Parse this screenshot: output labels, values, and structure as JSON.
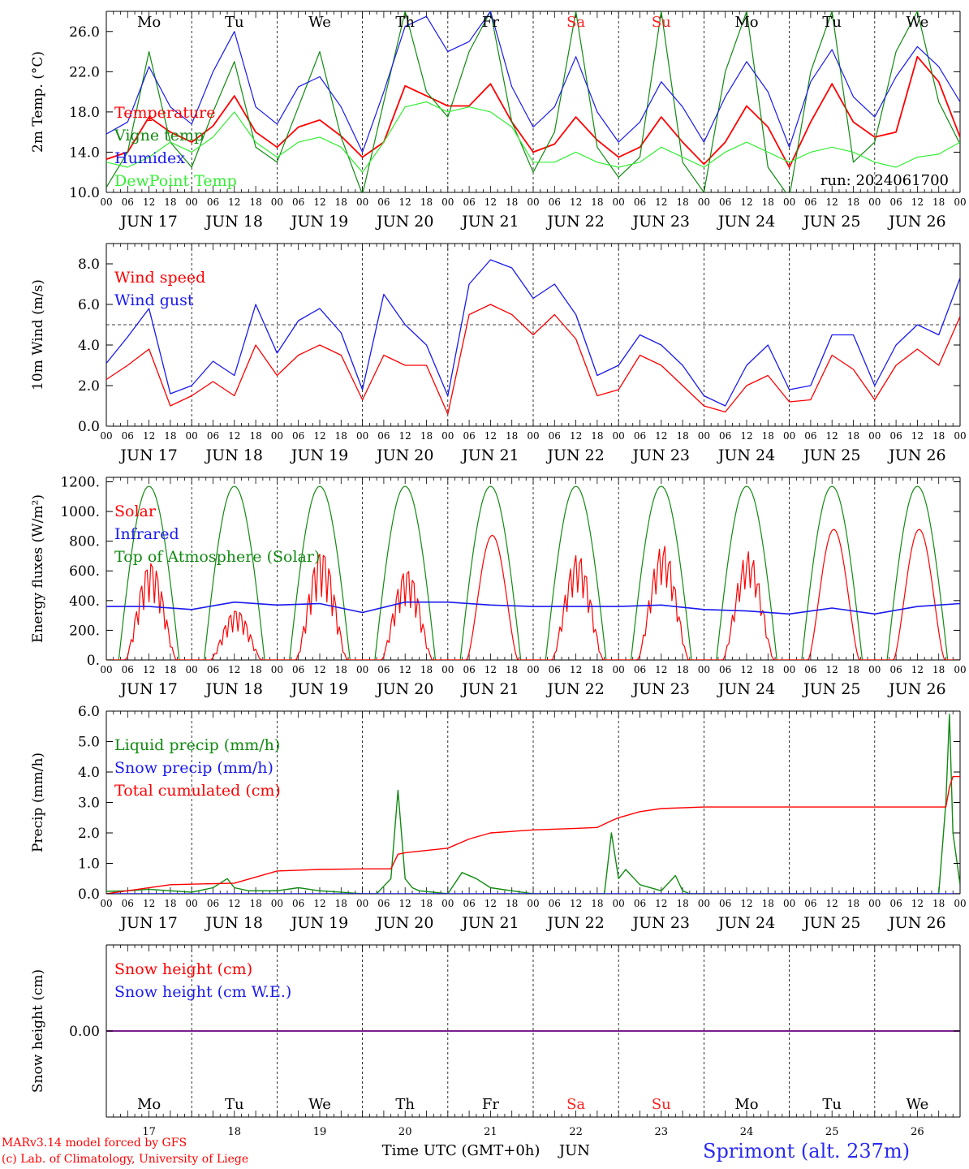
{
  "meta": {
    "footer_model": "MARv3.14 model forced by GFS",
    "footer_copy": "(c) Lab. of Climatology, University of Liege",
    "station": "Sprimont (alt. 237m)",
    "time_axis_label": "Time UTC (GMT+0h)",
    "month_label": "JUN"
  },
  "colors": {
    "red": "#ff0000",
    "green": "#118a11",
    "blue": "#1a1aee",
    "lightgreen": "#33ee33",
    "purple": "#7a1f8f",
    "weekend": "#ff2020"
  },
  "days": {
    "names": [
      "Mo",
      "Tu",
      "We",
      "Th",
      "Fr",
      "Sa",
      "Su",
      "Mo",
      "Tu",
      "We"
    ],
    "weekend": [
      false,
      false,
      false,
      false,
      false,
      true,
      true,
      false,
      false,
      false
    ],
    "dates": [
      "JUN 17",
      "JUN 18",
      "JUN 19",
      "JUN 20",
      "JUN 21",
      "JUN 22",
      "JUN 23",
      "JUN 24",
      "JUN 25",
      "JUN 26"
    ],
    "numbers": [
      "17",
      "18",
      "19",
      "20",
      "21",
      "22",
      "23",
      "24",
      "25",
      "26"
    ],
    "hour_ticks": [
      "00",
      "06",
      "12",
      "18"
    ],
    "last_tick": "00"
  },
  "chart_data": [
    {
      "id": "temperature",
      "type": "line",
      "ylabel": "2m Temp. (°C)",
      "ylim": [
        10,
        28
      ],
      "yticks": [
        "10.0",
        "14.0",
        "18.0",
        "22.0",
        "26.0"
      ],
      "ytick_values": [
        10,
        14,
        18,
        22,
        26
      ],
      "annotation": "run: 2024061700",
      "x_hours": [
        0,
        6,
        12,
        18,
        24,
        30,
        36,
        42,
        48,
        54,
        60,
        66,
        72,
        78,
        84,
        90,
        96,
        102,
        108,
        114,
        120,
        126,
        132,
        138,
        144,
        150,
        156,
        162,
        168,
        174,
        180,
        186,
        192,
        198,
        204,
        210,
        216,
        222,
        228,
        234,
        240
      ],
      "series": [
        {
          "name": "Temperature",
          "color": "red",
          "values": [
            13.3,
            14.0,
            17.5,
            16.0,
            15.0,
            16.6,
            19.6,
            16.0,
            14.5,
            16.5,
            17.2,
            15.6,
            13.5,
            15.0,
            20.6,
            19.6,
            18.6,
            18.6,
            20.8,
            17.0,
            14.0,
            14.8,
            17.5,
            15.2,
            13.5,
            14.5,
            17.5,
            15.0,
            12.8,
            15.0,
            18.6,
            16.5,
            12.5,
            17.0,
            20.8,
            17.0,
            15.5,
            16.0,
            23.5,
            21.0,
            15.5
          ]
        },
        {
          "name": "Vigne temp",
          "color": "green",
          "values": [
            10.5,
            14.0,
            24.0,
            15.0,
            12.5,
            18.0,
            23.0,
            14.5,
            13.0,
            18.5,
            24.0,
            15.5,
            9.8,
            19.0,
            28.0,
            20.0,
            17.5,
            24.0,
            28.0,
            17.0,
            12.0,
            16.0,
            28.0,
            14.5,
            11.5,
            13.5,
            28.0,
            13.0,
            10.0,
            22.0,
            28.0,
            12.5,
            9.5,
            22.0,
            28.0,
            13.0,
            15.0,
            24.0,
            28.0,
            19.0,
            14.8
          ]
        },
        {
          "name": "Humidex",
          "color": "blue",
          "values": [
            15.8,
            17.0,
            22.5,
            18.5,
            16.8,
            22.0,
            26.0,
            18.5,
            16.8,
            20.5,
            21.5,
            18.5,
            14.0,
            20.0,
            26.5,
            27.5,
            24.0,
            25.0,
            28.0,
            20.5,
            16.5,
            18.5,
            23.5,
            18.0,
            15.0,
            17.0,
            21.0,
            18.5,
            15.0,
            19.5,
            23.0,
            20.0,
            14.5,
            21.0,
            24.2,
            19.5,
            17.5,
            21.5,
            24.5,
            22.5,
            19.0
          ]
        },
        {
          "name": "DewPoint Temp",
          "color": "lightgreen",
          "values": [
            13.0,
            12.5,
            13.5,
            15.0,
            14.0,
            15.5,
            18.0,
            15.0,
            13.5,
            15.0,
            15.5,
            14.5,
            12.0,
            15.0,
            18.5,
            19.0,
            18.0,
            18.5,
            18.0,
            16.5,
            13.0,
            13.0,
            14.0,
            13.0,
            12.5,
            13.0,
            14.5,
            13.5,
            12.5,
            14.0,
            15.0,
            14.0,
            13.0,
            14.0,
            14.5,
            14.0,
            13.0,
            12.5,
            13.5,
            13.8,
            15.0
          ]
        }
      ],
      "legend": [
        "Temperature",
        "Vigne temp",
        "Humidex",
        "DewPoint Temp"
      ]
    },
    {
      "id": "wind",
      "type": "line",
      "ylabel": "10m Wind (m/s)",
      "ylim": [
        0,
        9
      ],
      "yticks": [
        "0.0",
        "2.0",
        "4.0",
        "6.0",
        "8.0"
      ],
      "ytick_values": [
        0,
        2,
        4,
        6,
        8
      ],
      "reference_line": 5,
      "x_hours": [
        0,
        6,
        12,
        18,
        24,
        30,
        36,
        42,
        48,
        54,
        60,
        66,
        72,
        78,
        84,
        90,
        96,
        102,
        108,
        114,
        120,
        126,
        132,
        138,
        144,
        150,
        156,
        162,
        168,
        174,
        180,
        186,
        192,
        198,
        204,
        210,
        216,
        222,
        228,
        234,
        240
      ],
      "series": [
        {
          "name": "Wind speed",
          "color": "red",
          "values": [
            2.3,
            3.0,
            3.8,
            1.0,
            1.5,
            2.2,
            1.5,
            4.0,
            2.5,
            3.5,
            4.0,
            3.5,
            1.3,
            3.5,
            3.0,
            3.0,
            0.6,
            5.5,
            6.0,
            5.5,
            4.5,
            5.5,
            4.3,
            1.5,
            1.8,
            3.5,
            3.0,
            2.0,
            1.0,
            0.7,
            2.0,
            2.5,
            1.2,
            1.3,
            3.5,
            2.8,
            1.3,
            3.0,
            3.8,
            3.0,
            5.4
          ]
        },
        {
          "name": "Wind gust",
          "color": "blue",
          "values": [
            3.1,
            4.4,
            5.8,
            1.6,
            2.0,
            3.2,
            2.5,
            6.0,
            3.6,
            5.2,
            5.8,
            4.6,
            1.8,
            6.5,
            5.0,
            4.0,
            1.5,
            7.0,
            8.2,
            7.8,
            6.3,
            7.0,
            5.5,
            2.5,
            3.0,
            4.5,
            4.0,
            3.0,
            1.5,
            1.0,
            3.0,
            4.0,
            1.8,
            2.0,
            4.5,
            4.5,
            2.0,
            4.0,
            5.0,
            4.5,
            7.3
          ]
        }
      ],
      "legend": [
        "Wind speed",
        "Wind gust"
      ]
    },
    {
      "id": "energy",
      "type": "line",
      "ylabel": "Energy fluxes (W/m²)",
      "ylim": [
        0,
        1230
      ],
      "yticks": [
        "0.",
        "200.",
        "400.",
        "600.",
        "800.",
        "1000.",
        "1200."
      ],
      "ytick_values": [
        0,
        200,
        400,
        600,
        800,
        1000,
        1200
      ],
      "solar_peaks": [
        680,
        350,
        760,
        630,
        840,
        730,
        790,
        740,
        880,
        880
      ],
      "toa_peak": 1170,
      "infrared": {
        "x_hours": [
          0,
          12,
          24,
          36,
          48,
          60,
          72,
          84,
          96,
          108,
          120,
          132,
          144,
          156,
          168,
          180,
          192,
          204,
          216,
          228,
          240
        ],
        "values": [
          360,
          360,
          340,
          390,
          370,
          380,
          320,
          390,
          390,
          370,
          360,
          360,
          360,
          370,
          340,
          330,
          310,
          350,
          310,
          360,
          380
        ]
      },
      "series": [
        {
          "name": "Solar",
          "color": "red"
        },
        {
          "name": "Infrared",
          "color": "blue"
        },
        {
          "name": "Top of Atmosphere (Solar)",
          "color": "green"
        }
      ],
      "legend": [
        "Solar",
        "Infrared",
        "Top of Atmosphere (Solar)"
      ]
    },
    {
      "id": "precip",
      "type": "line",
      "ylabel": "Precip (mm/h)",
      "ylim": [
        0,
        6.0
      ],
      "yticks": [
        "0.0",
        "1.0",
        "2.0",
        "3.0",
        "4.0",
        "5.0",
        "6.0"
      ],
      "ytick_values": [
        0,
        1,
        2,
        3,
        4,
        5,
        6
      ],
      "series": [
        {
          "name": "Liquid precip (mm/h)",
          "color": "green",
          "x_hours": [
            0,
            6,
            12,
            18,
            24,
            30,
            34,
            36,
            40,
            48,
            54,
            60,
            66,
            72,
            76,
            80,
            82,
            84,
            86,
            88,
            96,
            100,
            104,
            108,
            114,
            120,
            140,
            142,
            144,
            146,
            150,
            156,
            160,
            162,
            164,
            168,
            180,
            200,
            220,
            234,
            236,
            237,
            238,
            240
          ],
          "values": [
            0.08,
            0.1,
            0.15,
            0.1,
            0.05,
            0.2,
            0.5,
            0.2,
            0.1,
            0.1,
            0.2,
            0.1,
            0.05,
            0,
            0,
            0.5,
            3.4,
            0.5,
            0.2,
            0.1,
            0,
            0.7,
            0.5,
            0.2,
            0.1,
            0,
            0,
            2.0,
            0.5,
            0.8,
            0.3,
            0.1,
            0.6,
            0.1,
            0,
            0,
            0,
            0,
            0,
            0,
            3.0,
            5.9,
            2.0,
            0.3
          ]
        },
        {
          "name": "Snow precip (mm/h)",
          "color": "blue",
          "x_hours": [
            0,
            240
          ],
          "values": [
            0,
            0
          ]
        },
        {
          "name": "Total cumulated (cm)",
          "color": "red",
          "x_hours": [
            0,
            18,
            36,
            48,
            60,
            72,
            80,
            82,
            84,
            96,
            102,
            108,
            120,
            132,
            138,
            142,
            144,
            150,
            156,
            168,
            180,
            216,
            236,
            237,
            238,
            240
          ],
          "values": [
            0.0,
            0.3,
            0.35,
            0.75,
            0.8,
            0.82,
            0.82,
            1.3,
            1.35,
            1.5,
            1.8,
            2.0,
            2.1,
            2.15,
            2.18,
            2.4,
            2.5,
            2.7,
            2.8,
            2.85,
            2.85,
            2.85,
            2.85,
            3.5,
            3.85,
            3.85
          ]
        }
      ],
      "legend": [
        "Liquid precip (mm/h)",
        "Snow precip (mm/h)",
        "Total cumulated (cm)"
      ]
    },
    {
      "id": "snow",
      "type": "line",
      "ylabel": "Snow height (cm)",
      "ylim": [
        -1,
        1
      ],
      "yticks": [
        "0.00"
      ],
      "ytick_values": [
        0
      ],
      "series": [
        {
          "name": "Snow height (cm)",
          "color": "red",
          "x_hours": [
            0,
            240
          ],
          "values": [
            0,
            0
          ]
        },
        {
          "name": "Snow height (cm W.E.)",
          "color": "blue",
          "x_hours": [
            0,
            240
          ],
          "values": [
            0,
            0
          ]
        }
      ],
      "legend": [
        "Snow height (cm)",
        "Snow height (cm W.E.)"
      ]
    }
  ]
}
